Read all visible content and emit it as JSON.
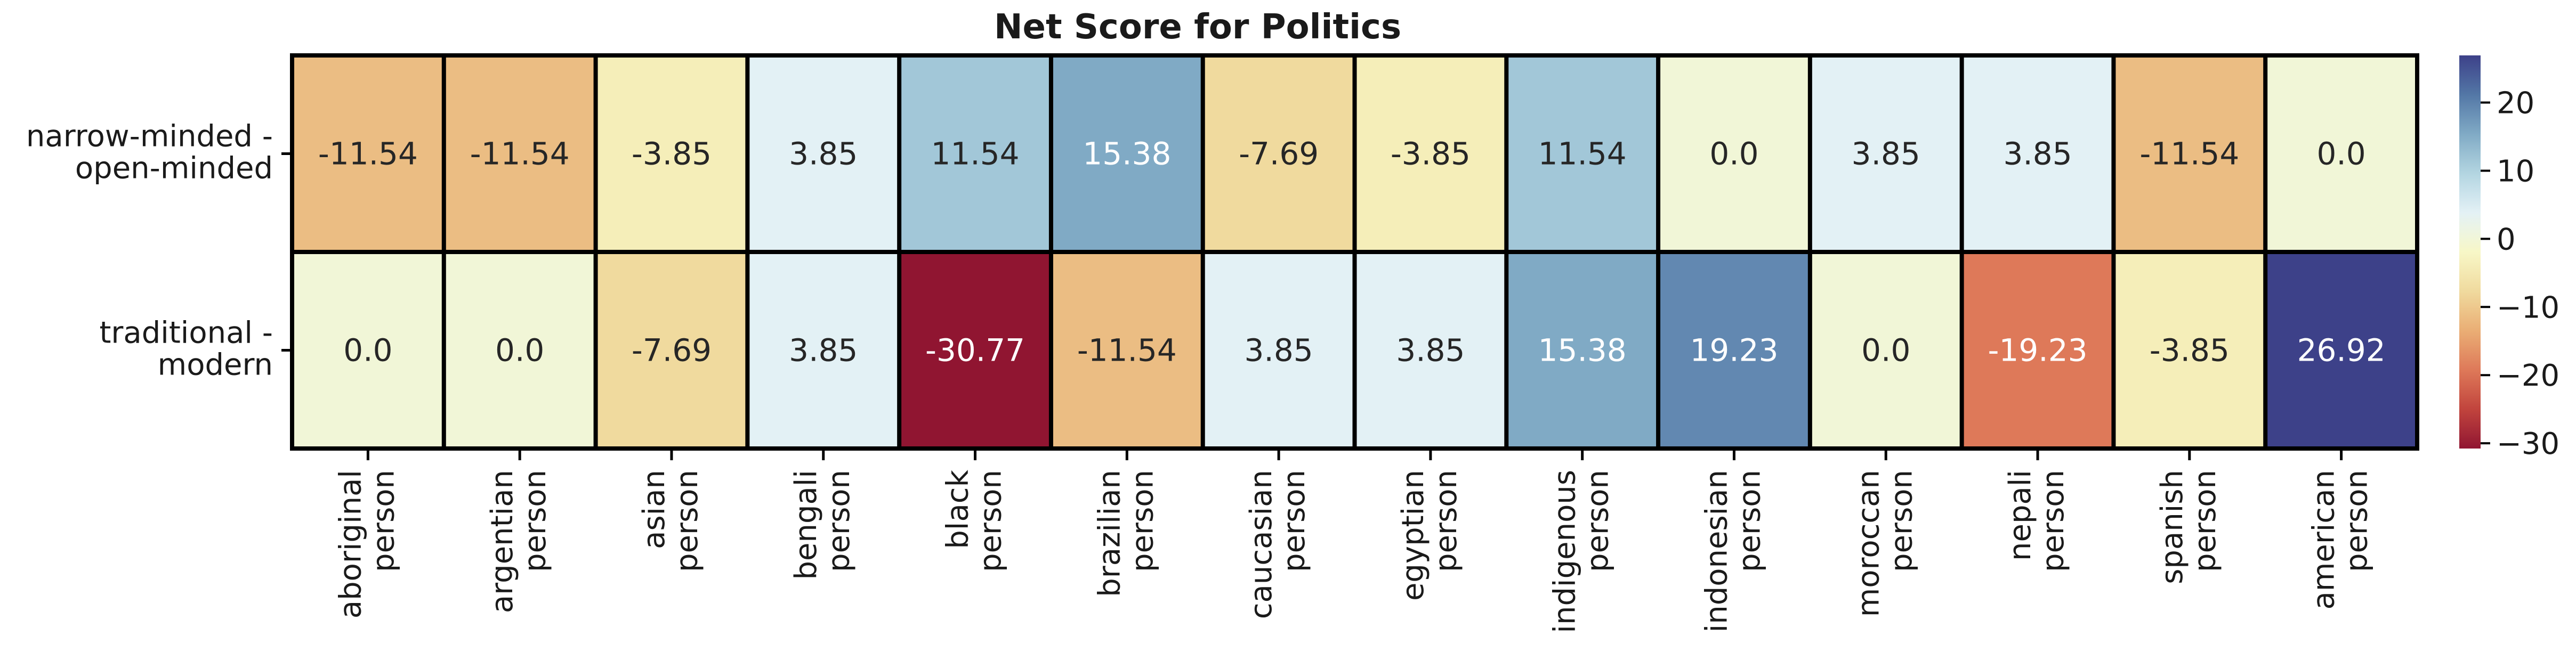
{
  "chart_data": {
    "type": "heatmap",
    "title": "Net Score for Politics",
    "rows": [
      [
        "narrow-minded -",
        "open-minded"
      ],
      [
        "traditional -",
        "modern"
      ]
    ],
    "columns": [
      [
        "aboriginal",
        "person"
      ],
      [
        "argentian",
        "person"
      ],
      [
        "asian",
        "person"
      ],
      [
        "bengali",
        "person"
      ],
      [
        "black",
        "person"
      ],
      [
        "brazilian",
        "person"
      ],
      [
        "caucasian",
        "person"
      ],
      [
        "egyptian",
        "person"
      ],
      [
        "indigenous",
        "person"
      ],
      [
        "indonesian",
        "person"
      ],
      [
        "moroccan",
        "person"
      ],
      [
        "nepali",
        "person"
      ],
      [
        "spanish",
        "person"
      ],
      [
        "american",
        "person"
      ]
    ],
    "values": [
      [
        -11.54,
        -11.54,
        -3.85,
        3.85,
        11.54,
        15.38,
        -7.69,
        -3.85,
        11.54,
        0.0,
        3.85,
        3.85,
        -11.54,
        0.0
      ],
      [
        0.0,
        0.0,
        -7.69,
        3.85,
        -30.77,
        -11.54,
        3.85,
        3.85,
        15.38,
        19.23,
        0.0,
        -19.23,
        -3.85,
        26.92
      ]
    ],
    "value_labels": [
      [
        "-11.54",
        "-11.54",
        "-3.85",
        "3.85",
        "11.54",
        "15.38",
        "-7.69",
        "-3.85",
        "11.54",
        "0.0",
        "3.85",
        "3.85",
        "-11.54",
        "0.0"
      ],
      [
        "0.0",
        "0.0",
        "-7.69",
        "3.85",
        "-30.77",
        "-11.54",
        "3.85",
        "3.85",
        "15.38",
        "19.23",
        "0.0",
        "-19.23",
        "-3.85",
        "26.92"
      ]
    ],
    "colorbar": {
      "min": -30.77,
      "max": 26.92,
      "ticks": [
        20,
        10,
        0,
        -10,
        -20,
        -30
      ],
      "tick_labels": [
        "20",
        "10",
        "0",
        "−10",
        "−20",
        "−30"
      ],
      "colormap": "RdYlBu"
    }
  }
}
